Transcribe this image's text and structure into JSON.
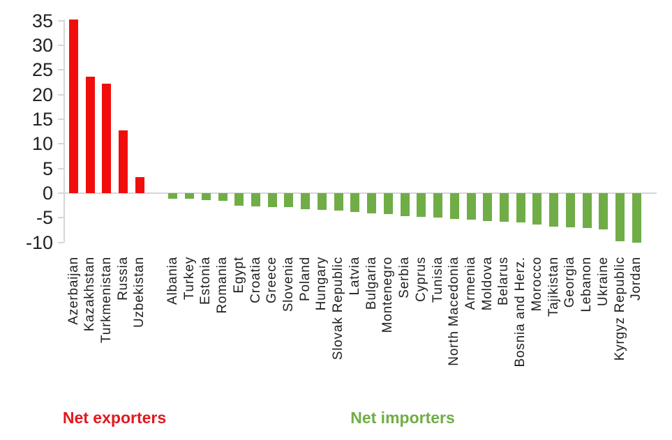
{
  "chart_data": {
    "type": "bar",
    "title": "",
    "xlabel": "",
    "ylabel": "",
    "ylim": [
      -10,
      35
    ],
    "yticks": [
      35,
      30,
      25,
      20,
      15,
      10,
      5,
      0,
      -5,
      -10
    ],
    "grid": false,
    "legend_position": "bottom",
    "series": [
      {
        "name": "Net exporters",
        "color": "#f20d0d",
        "categories": [
          "Azerbaijan",
          "Kazakhstan",
          "Turkmenistan",
          "Russia",
          "Uzbekistan"
        ],
        "values": [
          35.2,
          23.7,
          22.2,
          12.8,
          3.3
        ]
      },
      {
        "name": "Net importers",
        "color": "#70ad47",
        "categories": [
          "Albania",
          "Turkey",
          "Estonia",
          "Romania",
          "Egypt",
          "Croatia",
          "Greece",
          "Slovenia",
          "Poland",
          "Hungary",
          "Slovak Republic",
          "Latvia",
          "Bulgaria",
          "Montenegro",
          "Serbia",
          "Cyprus",
          "Tunisia",
          "North Macedonia",
          "Armenia",
          "Moldova",
          "Belarus",
          "Bosnia and Herz.",
          "Morocco",
          "Tajikistan",
          "Georgia",
          "Lebanon",
          "Ukraine",
          "Kyrgyz Republic",
          "Jordan"
        ],
        "values": [
          -1.2,
          -1.2,
          -1.4,
          -1.6,
          -2.6,
          -2.7,
          -2.8,
          -2.9,
          -3.2,
          -3.4,
          -3.5,
          -3.8,
          -4.1,
          -4.3,
          -4.6,
          -4.8,
          -5.0,
          -5.3,
          -5.4,
          -5.6,
          -5.8,
          -6.0,
          -6.4,
          -6.8,
          -6.9,
          -7.1,
          -7.4,
          -9.8,
          -10.1
        ]
      }
    ]
  },
  "legend": {
    "exporters_label": "Net exporters",
    "importers_label": "Net importers"
  },
  "colors": {
    "exporter_bar": "#f20d0d",
    "exporter_text": "#e3191d",
    "importer_bar": "#70ad47",
    "importer_text": "#70ad47",
    "axis": "#d6d6d6",
    "tick_text": "#222222",
    "category_text": "#1f1f1f"
  }
}
